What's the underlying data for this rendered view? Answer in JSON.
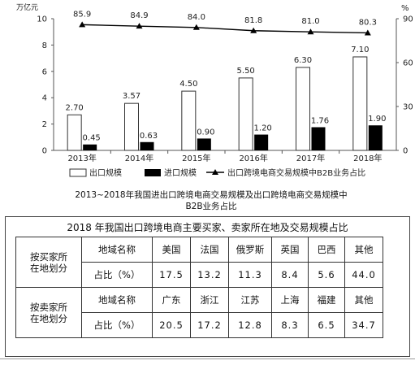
{
  "chart_data": {
    "type": "bar+line",
    "categories": [
      "2013年",
      "2014年",
      "2015年",
      "2016年",
      "2017年",
      "2018年"
    ],
    "series": [
      {
        "name": "出口规模",
        "type": "bar",
        "axis": "left",
        "color": "#ffffff",
        "values": [
          2.7,
          3.57,
          4.5,
          5.5,
          6.3,
          7.1
        ]
      },
      {
        "name": "进口规模",
        "type": "bar",
        "axis": "left",
        "color": "#000000",
        "values": [
          0.45,
          0.63,
          0.9,
          1.2,
          1.76,
          1.9
        ]
      },
      {
        "name": "出口跨境电商交易规模中B2B业务占比",
        "type": "line",
        "axis": "right",
        "color": "#000000",
        "values": [
          85.9,
          84.9,
          84.0,
          81.8,
          81.0,
          80.3
        ]
      }
    ],
    "left_unit": "万亿元",
    "right_unit": "%",
    "left_ylim": [
      0,
      10
    ],
    "left_ticks": [
      "0",
      "2",
      "4",
      "6",
      "8",
      "10"
    ],
    "right_ylim": [
      0,
      90
    ],
    "right_ticks": [
      "0",
      "30",
      "60",
      "90"
    ],
    "bar_labels_export": [
      "2.70",
      "3.57",
      "4.50",
      "5.50",
      "6.30",
      "7.10"
    ],
    "bar_labels_import": [
      "0.45",
      "0.63",
      "0.90",
      "1.20",
      "1.76",
      "1.90"
    ],
    "line_labels": [
      "85.9",
      "84.9",
      "84.0",
      "81.8",
      "81.0",
      "80.3"
    ],
    "legend_position": "bottom",
    "caption_line1": "2013~2018年我国进出口跨境电商交易规模及出口跨境电商交易规模中",
    "caption_line2": "B2B业务占比"
  },
  "table": {
    "title": "2018 年我国出口跨境电商主要买家、卖家所在地及交易规模占比",
    "buyer": {
      "group_label_line1": "按买家所",
      "group_label_line2": "在地划分",
      "region_header": "地域名称",
      "share_header": "占比（%）",
      "regions": [
        "美国",
        "法国",
        "俄罗斯",
        "英国",
        "巴西",
        "其他"
      ],
      "shares": [
        "17.5",
        "13.2",
        "11.3",
        "8.4",
        "5.6",
        "44.0"
      ]
    },
    "seller": {
      "group_label_line1": "按卖家所",
      "group_label_line2": "在地划分",
      "region_header": "地域名称",
      "share_header": "占比（%）",
      "regions": [
        "广东",
        "浙江",
        "江苏",
        "上海",
        "福建",
        "其他"
      ],
      "shares": [
        "20.5",
        "17.2",
        "12.8",
        "8.3",
        "6.5",
        "34.7"
      ]
    }
  }
}
